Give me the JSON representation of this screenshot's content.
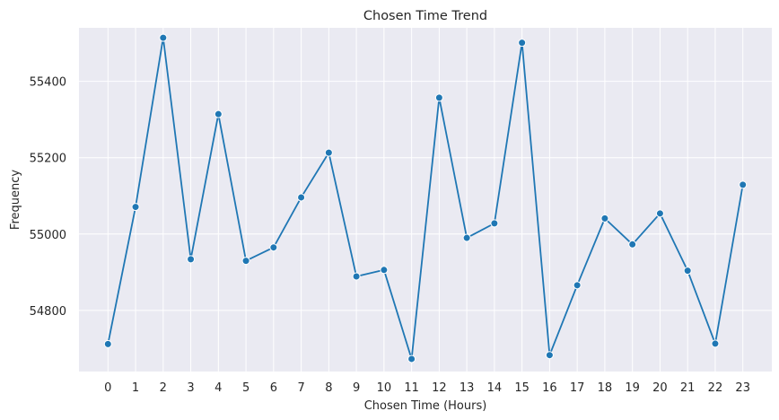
{
  "chart_data": {
    "type": "line",
    "title": "Chosen Time Trend",
    "xlabel": "Chosen Time (Hours)",
    "ylabel": "Frequency",
    "x": [
      0,
      1,
      2,
      3,
      4,
      5,
      6,
      7,
      8,
      9,
      10,
      11,
      12,
      13,
      14,
      15,
      16,
      17,
      18,
      19,
      20,
      21,
      22,
      23
    ],
    "series": [
      {
        "values": [
          54712,
          55071,
          55514,
          54934,
          55314,
          54930,
          54965,
          55096,
          55213,
          54889,
          54906,
          54673,
          55357,
          54990,
          55028,
          55501,
          54683,
          54866,
          55041,
          54973,
          55054,
          54904,
          54713,
          55129
        ]
      }
    ],
    "ylim": [
      54640,
      55540
    ],
    "yticks": [
      54800,
      55000,
      55200,
      55400
    ],
    "grid": true,
    "colors": {
      "line": "#1f77b4",
      "background": "#eaeaf2",
      "grid": "#ffffff"
    }
  }
}
